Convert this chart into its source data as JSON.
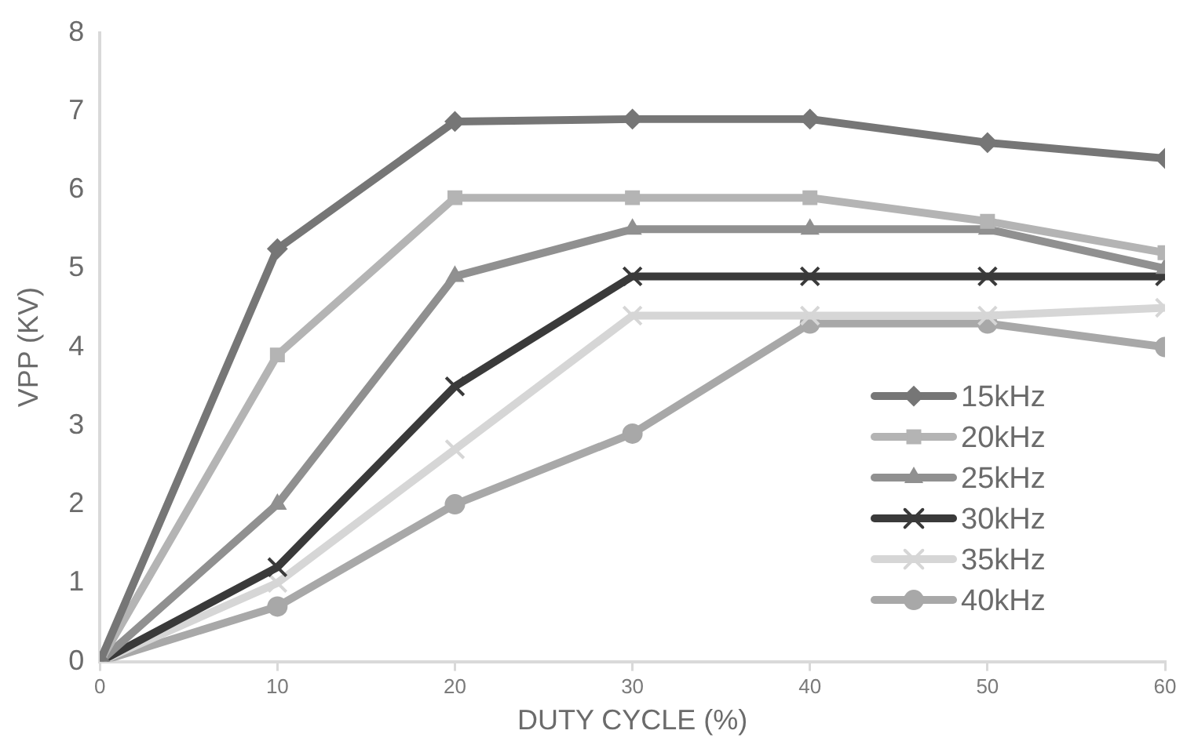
{
  "chart_data": {
    "type": "line",
    "xlabel": "DUTY CYCLE (%)",
    "ylabel": "VPP (KV)",
    "x": [
      0,
      10,
      20,
      30,
      40,
      50,
      60
    ],
    "xlim": [
      0,
      60
    ],
    "xticks": [
      0,
      10,
      20,
      30,
      40,
      50,
      60
    ],
    "ylim": [
      0,
      8
    ],
    "yticks": [
      0,
      1,
      2,
      3,
      4,
      5,
      6,
      7,
      8
    ],
    "grid": false,
    "legend": "right",
    "series": [
      {
        "name": "15kHz",
        "color": "#767676",
        "marker": "diamond",
        "values": [
          0,
          5.25,
          6.87,
          6.9,
          6.9,
          6.6,
          6.4
        ]
      },
      {
        "name": "20kHz",
        "color": "#b4b4b4",
        "marker": "square",
        "values": [
          0,
          3.9,
          5.9,
          5.9,
          5.9,
          5.6,
          5.2
        ]
      },
      {
        "name": "25kHz",
        "color": "#909090",
        "marker": "triangle",
        "values": [
          0,
          2.0,
          4.9,
          5.5,
          5.5,
          5.5,
          5.0
        ]
      },
      {
        "name": "30kHz",
        "color": "#3a3a3a",
        "marker": "cross",
        "values": [
          0,
          1.2,
          3.5,
          4.9,
          4.9,
          4.9,
          4.9
        ]
      },
      {
        "name": "35kHz",
        "color": "#d6d6d6",
        "marker": "cross",
        "values": [
          0,
          1.0,
          2.7,
          4.4,
          4.4,
          4.4,
          4.5
        ]
      },
      {
        "name": "40kHz",
        "color": "#a8a8a8",
        "marker": "circle",
        "values": [
          0,
          0.7,
          2.0,
          2.9,
          4.3,
          4.3,
          4.0
        ]
      }
    ]
  }
}
